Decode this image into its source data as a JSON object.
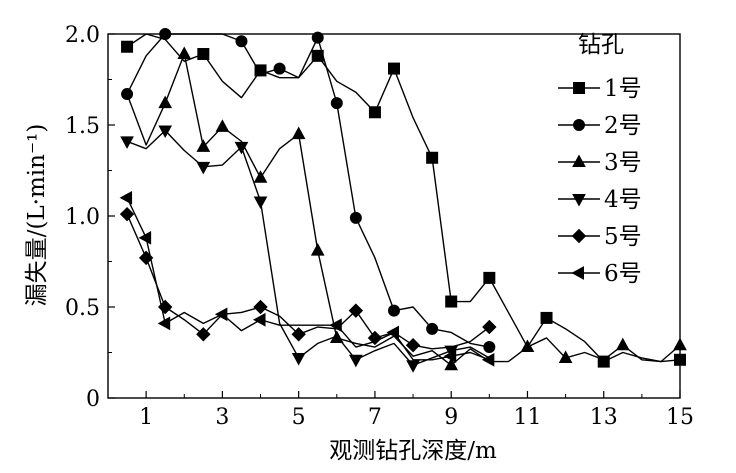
{
  "chart_data": {
    "type": "line",
    "title": "",
    "xlabel": "观测钻孔深度/m",
    "ylabel": "漏失量/(L·min⁻¹)",
    "xlim": [
      0,
      15
    ],
    "ylim": [
      0,
      2.0
    ],
    "xticks": [
      1,
      3,
      5,
      7,
      9,
      11,
      13,
      15
    ],
    "yticks": [
      0,
      0.5,
      1.0,
      1.5,
      2.0
    ],
    "xtick_labels": [
      "1",
      "3",
      "5",
      "7",
      "9",
      "11",
      "13",
      "15"
    ],
    "ytick_labels": [
      "0",
      "0.5",
      "1.0",
      "1.5",
      "2.0"
    ],
    "grid": false,
    "legend_title": "钻孔",
    "legend_position": "right",
    "series": [
      {
        "name": "1号",
        "marker": "square",
        "x": [
          0.5,
          1.0,
          1.5,
          2.0,
          2.5,
          3.0,
          3.5,
          4.0,
          4.5,
          5.0,
          5.5,
          6.0,
          6.5,
          7.0,
          7.5,
          8.0,
          8.5,
          9.0,
          9.5,
          10.0,
          10.5,
          11.0,
          11.5,
          12.0,
          12.5,
          13.0,
          13.5,
          14.0,
          14.5,
          15.0
        ],
        "values": [
          1.93,
          2.0,
          1.97,
          1.85,
          1.89,
          1.74,
          1.65,
          1.8,
          1.76,
          1.76,
          1.88,
          1.74,
          1.68,
          1.57,
          1.81,
          1.54,
          1.32,
          0.53,
          0.53,
          0.66,
          0.47,
          0.28,
          0.44,
          0.38,
          0.31,
          0.2,
          0.25,
          0.22,
          0.2,
          0.21
        ],
        "marked": [
          true,
          false,
          false,
          false,
          true,
          false,
          false,
          true,
          false,
          false,
          true,
          false,
          false,
          true,
          true,
          false,
          true,
          true,
          false,
          true,
          false,
          false,
          true,
          false,
          false,
          true,
          false,
          false,
          false,
          true
        ]
      },
      {
        "name": "2号",
        "marker": "circle",
        "x": [
          0.5,
          1.0,
          1.5,
          2.0,
          2.5,
          3.0,
          3.5,
          4.0,
          4.5,
          5.0,
          5.5,
          6.0,
          6.5,
          7.0,
          7.5,
          8.0,
          8.5,
          9.0,
          9.5,
          10.0
        ],
        "values": [
          1.67,
          1.88,
          2.0,
          2.0,
          2.0,
          2.0,
          1.96,
          1.78,
          1.81,
          1.76,
          1.98,
          1.62,
          0.99,
          0.77,
          0.48,
          0.5,
          0.38,
          0.36,
          0.3,
          0.28
        ],
        "marked": [
          true,
          false,
          true,
          false,
          false,
          false,
          true,
          false,
          true,
          false,
          true,
          true,
          true,
          false,
          true,
          false,
          true,
          false,
          false,
          true
        ]
      },
      {
        "name": "3号",
        "marker": "triangle-up",
        "x": [
          0.5,
          1.0,
          1.5,
          2.0,
          2.5,
          3.0,
          3.5,
          4.0,
          4.5,
          5.0,
          5.5,
          6.0,
          6.5,
          7.0,
          7.5,
          8.0,
          8.5,
          9.0,
          9.5,
          10.0,
          10.5,
          11.0,
          11.5,
          12.0,
          12.5,
          13.0,
          13.5,
          14.0,
          14.5,
          15.0
        ],
        "values": [
          1.67,
          1.39,
          1.62,
          1.89,
          1.38,
          1.49,
          1.41,
          1.21,
          1.37,
          1.45,
          0.81,
          0.33,
          0.3,
          0.28,
          0.34,
          0.23,
          0.26,
          0.18,
          0.27,
          0.2,
          0.2,
          0.28,
          0.33,
          0.22,
          0.25,
          0.21,
          0.29,
          0.21,
          0.2,
          0.29
        ],
        "marked": [
          false,
          false,
          true,
          true,
          true,
          true,
          false,
          true,
          false,
          true,
          true,
          true,
          false,
          false,
          false,
          false,
          false,
          true,
          false,
          false,
          false,
          true,
          false,
          true,
          false,
          false,
          true,
          false,
          false,
          true
        ]
      },
      {
        "name": "4号",
        "marker": "triangle-down",
        "x": [
          0.5,
          1.0,
          1.5,
          2.0,
          2.5,
          3.0,
          3.5,
          4.0,
          4.5,
          5.0,
          5.5,
          6.0,
          6.5,
          7.0,
          7.5,
          8.0,
          8.5,
          9.0,
          9.5,
          10.0
        ],
        "values": [
          1.41,
          1.37,
          1.47,
          1.36,
          1.27,
          1.28,
          1.38,
          1.08,
          0.41,
          0.22,
          0.3,
          0.34,
          0.21,
          0.26,
          0.3,
          0.18,
          0.22,
          0.26,
          0.28,
          0.22
        ],
        "marked": [
          true,
          false,
          true,
          false,
          true,
          false,
          true,
          true,
          false,
          true,
          false,
          false,
          true,
          false,
          false,
          true,
          false,
          true,
          false,
          false
        ]
      },
      {
        "name": "5号",
        "marker": "diamond",
        "x": [
          0.5,
          1.0,
          1.5,
          2.0,
          2.5,
          3.0,
          3.5,
          4.0,
          4.5,
          5.0,
          5.5,
          6.0,
          6.5,
          7.0,
          7.5,
          8.0,
          8.5,
          9.0,
          9.5,
          10.0
        ],
        "values": [
          1.01,
          0.77,
          0.5,
          0.43,
          0.35,
          0.46,
          0.47,
          0.5,
          0.45,
          0.35,
          0.39,
          0.38,
          0.48,
          0.33,
          0.36,
          0.29,
          0.27,
          0.28,
          0.31,
          0.39
        ],
        "marked": [
          true,
          true,
          true,
          false,
          true,
          false,
          false,
          true,
          false,
          true,
          false,
          false,
          true,
          true,
          false,
          true,
          false,
          false,
          false,
          true
        ]
      },
      {
        "name": "6号",
        "marker": "triangle-left",
        "x": [
          0.5,
          1.0,
          1.5,
          2.0,
          2.5,
          3.0,
          3.5,
          4.0,
          4.5,
          5.0,
          5.5,
          6.0,
          6.5,
          7.0,
          7.5,
          8.0,
          8.5,
          9.0,
          9.5,
          10.0
        ],
        "values": [
          1.1,
          0.88,
          0.41,
          0.47,
          0.41,
          0.46,
          0.37,
          0.43,
          0.4,
          0.4,
          0.4,
          0.4,
          0.28,
          0.31,
          0.36,
          0.21,
          0.21,
          0.23,
          0.25,
          0.21
        ],
        "marked": [
          true,
          true,
          true,
          false,
          false,
          true,
          false,
          true,
          false,
          false,
          false,
          true,
          false,
          false,
          true,
          false,
          false,
          true,
          false,
          true
        ]
      }
    ]
  }
}
